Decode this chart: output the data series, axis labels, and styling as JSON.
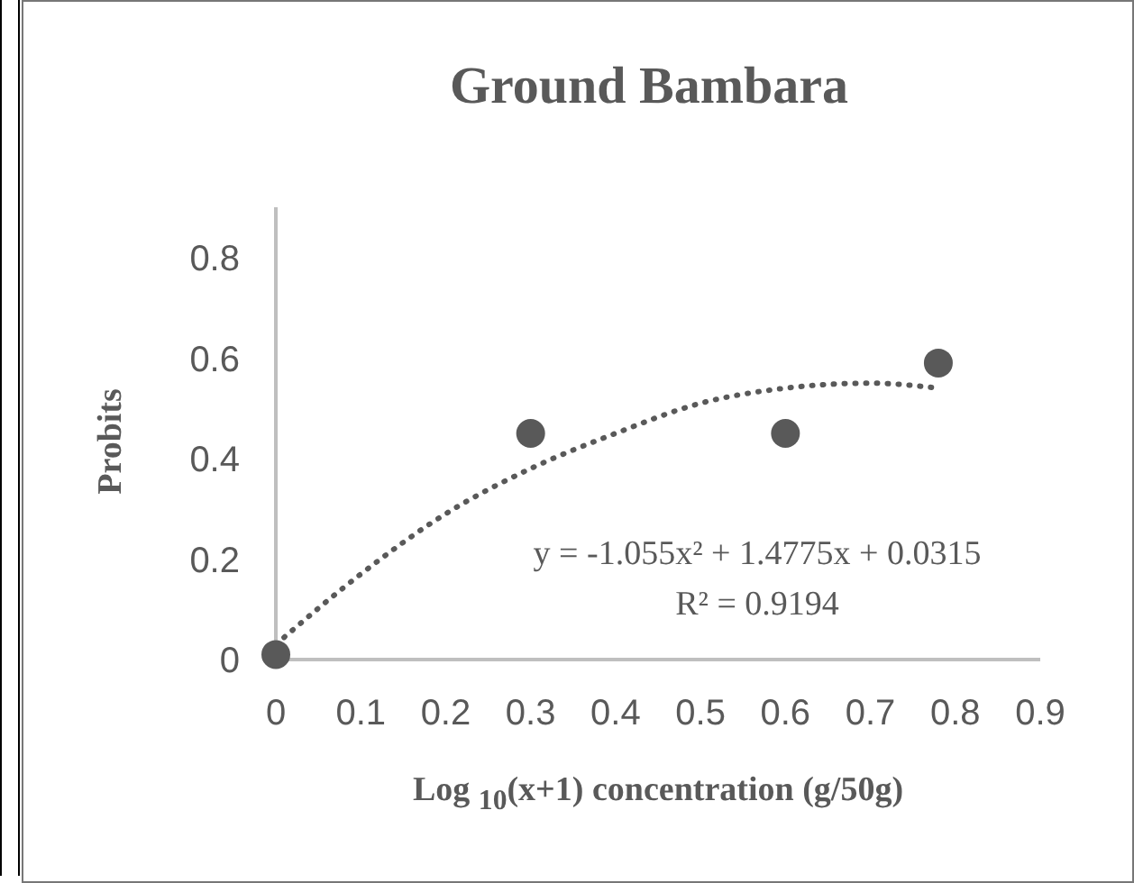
{
  "chart_data": {
    "type": "scatter",
    "title": "Ground Bambara",
    "xlabel": "Log $_{10}$(x+1) concentration (g/50g)",
    "ylabel": "Probits",
    "xlim": [
      0,
      0.9
    ],
    "xticks": [
      0,
      0.1,
      0.2,
      0.3,
      0.4,
      0.5,
      0.6,
      0.7,
      0.8,
      0.9
    ],
    "ylim": [
      0,
      0.9
    ],
    "yticks": [
      0,
      0.2,
      0.4,
      0.6,
      0.8
    ],
    "grid": false,
    "annotations": [
      "y = -1.055x² + 1.4775x + 0.0315",
      "R² = 0.9194"
    ],
    "series": [
      {
        "marker": "circle",
        "color": "#595959",
        "x": [
          0,
          0.3,
          0.6,
          0.78
        ],
        "values": [
          0.01,
          0.45,
          0.45,
          0.59
        ]
      },
      {
        "type": "line",
        "line_style": "dotted",
        "color": "#595959",
        "x": [
          0,
          0.1,
          0.2,
          0.3,
          0.4,
          0.5,
          0.6,
          0.7,
          0.78
        ],
        "values": [
          0.03,
          0.17,
          0.29,
          0.38,
          0.45,
          0.51,
          0.54,
          0.55,
          0.54
        ]
      }
    ]
  }
}
